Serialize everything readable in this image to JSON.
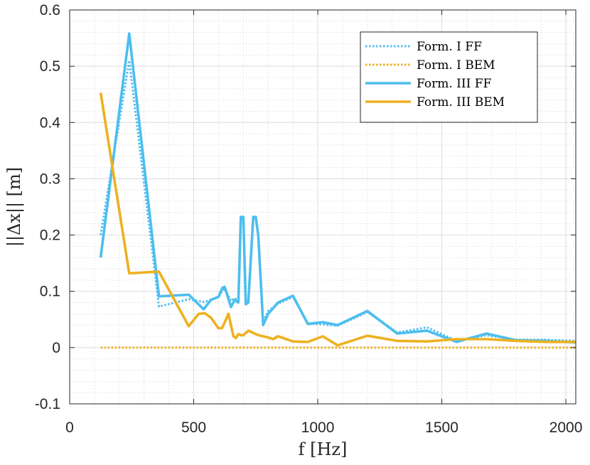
{
  "chart_data": {
    "type": "line",
    "title": "",
    "xlabel": "f [Hz]",
    "ylabel": "||Δx|| [m]",
    "xlim": [
      0,
      2040
    ],
    "ylim": [
      -0.1,
      0.6
    ],
    "xticks": [
      0,
      500,
      1000,
      1500,
      2000
    ],
    "yticks": [
      -0.1,
      0,
      0.1,
      0.2,
      0.3,
      0.4,
      0.5,
      0.6
    ],
    "xtick_labels": [
      "0",
      "500",
      "1000",
      "1500",
      "2000"
    ],
    "ytick_labels": [
      "-0.1",
      "0",
      "0.1",
      "0.2",
      "0.3",
      "0.4",
      "0.5",
      "0.6"
    ],
    "grid": true,
    "minor_grid": true,
    "legend_position": "top-right",
    "series": [
      {
        "name": "Form. I FF",
        "color": "#4DBEEE",
        "style": "dotted",
        "x": [
          125,
          240,
          360,
          480,
          540,
          570,
          600,
          615,
          625,
          650,
          665,
          680,
          690,
          700,
          710,
          720,
          740,
          750,
          760,
          780,
          800,
          840,
          900,
          960,
          1020,
          1080,
          1200,
          1320,
          1440,
          1560,
          1680,
          1800,
          1920,
          2040
        ],
        "y": [
          0.2,
          0.51,
          0.073,
          0.086,
          0.081,
          0.085,
          0.09,
          0.1,
          0.105,
          0.083,
          0.088,
          0.083,
          0.23,
          0.23,
          0.079,
          0.08,
          0.23,
          0.23,
          0.2,
          0.045,
          0.065,
          0.078,
          0.09,
          0.043,
          0.041,
          0.039,
          0.063,
          0.027,
          0.036,
          0.012,
          0.022,
          0.014,
          0.014,
          0.012
        ]
      },
      {
        "name": "Form. I BEM",
        "color": "#EDB120",
        "style": "dotted",
        "x": [
          125,
          240,
          360,
          480,
          600,
          720,
          840,
          960,
          1080,
          1200,
          1320,
          1440,
          1560,
          1680,
          1800,
          1920,
          2040
        ],
        "y": [
          0,
          0,
          0,
          0,
          0,
          0,
          0,
          0,
          0,
          0,
          0,
          0,
          0,
          0,
          0,
          0,
          0
        ]
      },
      {
        "name": "Form. III FF",
        "color": "#4DBEEE",
        "style": "solid",
        "x": [
          125,
          240,
          360,
          480,
          540,
          570,
          600,
          615,
          625,
          650,
          665,
          680,
          690,
          700,
          710,
          720,
          740,
          750,
          760,
          780,
          800,
          840,
          900,
          960,
          1020,
          1080,
          1200,
          1320,
          1440,
          1560,
          1680,
          1800,
          1920,
          2040
        ],
        "y": [
          0.16,
          0.558,
          0.091,
          0.094,
          0.068,
          0.085,
          0.09,
          0.106,
          0.108,
          0.072,
          0.085,
          0.08,
          0.232,
          0.232,
          0.077,
          0.08,
          0.232,
          0.232,
          0.2,
          0.04,
          0.06,
          0.08,
          0.092,
          0.042,
          0.045,
          0.04,
          0.065,
          0.025,
          0.03,
          0.01,
          0.025,
          0.013,
          0.012,
          0.009
        ]
      },
      {
        "name": "Form. III BEM",
        "color": "#EDB120",
        "style": "solid",
        "x": [
          125,
          240,
          360,
          480,
          520,
          545,
          570,
          600,
          615,
          640,
          660,
          670,
          680,
          690,
          700,
          720,
          740,
          760,
          800,
          820,
          840,
          900,
          960,
          1020,
          1080,
          1200,
          1320,
          1440,
          1560,
          1680,
          1800,
          1920,
          2040
        ],
        "y": [
          0.453,
          0.132,
          0.135,
          0.038,
          0.06,
          0.061,
          0.053,
          0.034,
          0.035,
          0.06,
          0.02,
          0.017,
          0.024,
          0.022,
          0.022,
          0.03,
          0.026,
          0.022,
          0.018,
          0.015,
          0.02,
          0.011,
          0.01,
          0.02,
          0.004,
          0.021,
          0.012,
          0.011,
          0.015,
          0.015,
          0.012,
          0.01,
          0.01
        ]
      }
    ]
  }
}
